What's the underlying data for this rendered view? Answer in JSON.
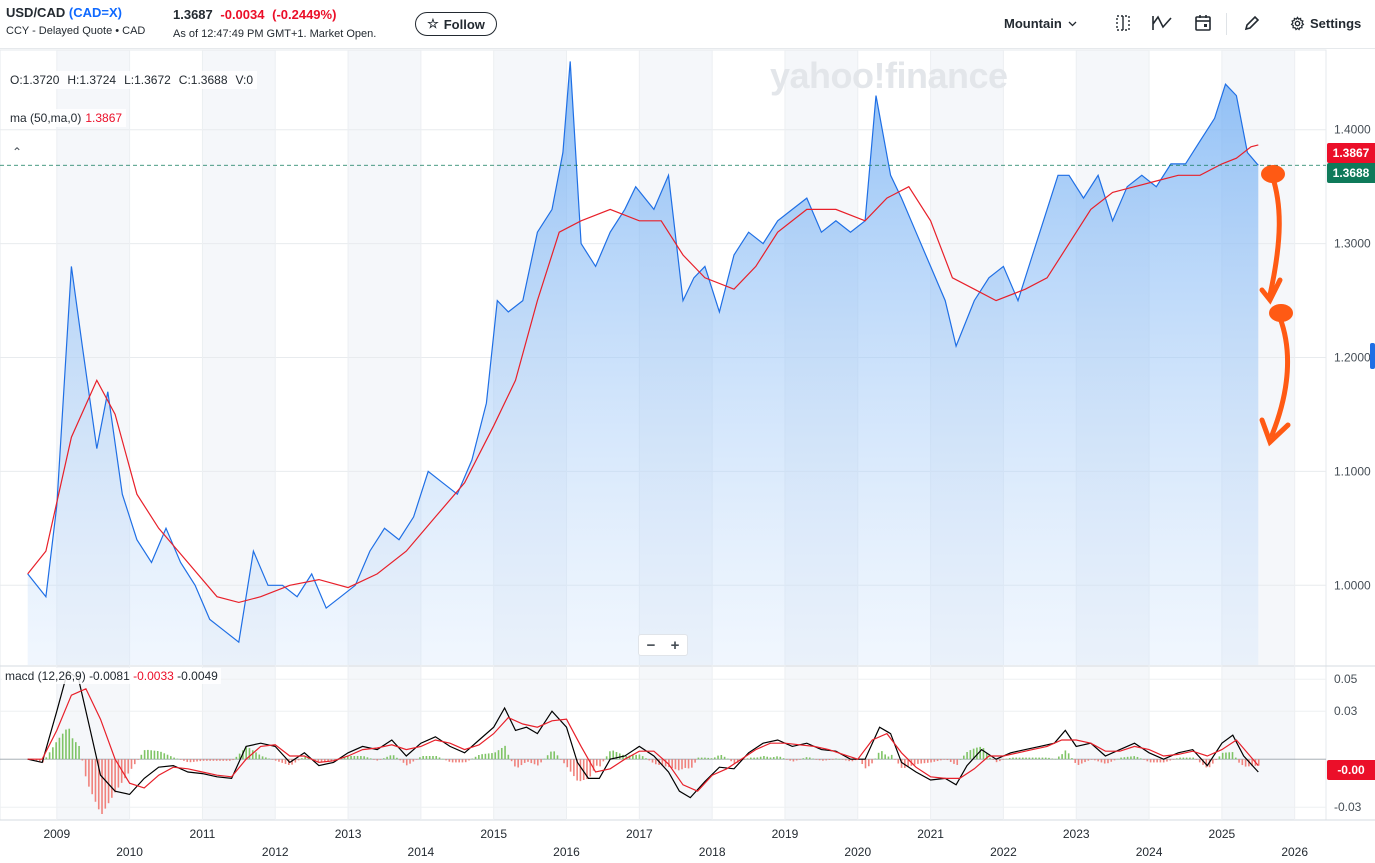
{
  "header": {
    "pair": "USD/CAD",
    "ticker": "(CAD=X)",
    "subtitle": "CCY - Delayed Quote • CAD",
    "price": "1.3687",
    "change": "-0.0034",
    "change_pct": "(-0.2449%)",
    "as_of": "As of 12:47:49 PM GMT+1. Market Open.",
    "follow_label": "Follow",
    "timezone": "Mountain",
    "settings_label": "Settings"
  },
  "legend": {
    "ohlc": [
      "O:1.3720",
      "H:1.3724",
      "L:1.3672",
      "C:1.3688",
      "V:0"
    ],
    "ma_label": "ma (50,ma,0)",
    "ma_value": "1.3867",
    "macd_label": "macd (12,26,9)",
    "macd_v1": "-0.0081",
    "macd_v2": "-0.0033",
    "macd_v3": "-0.0049"
  },
  "watermark": "yahoo!finance",
  "price_tags": {
    "ma": "1.3867",
    "close": "1.3688",
    "macd": "-0.00"
  },
  "colors": {
    "price_line": "#1f6fe5",
    "area": "#a9cdf8",
    "ma_line": "#e8202a",
    "macd_line": "#000000",
    "signal_line": "#e8202a",
    "hist_up": "#7fc466",
    "hist_down": "#f0827c",
    "close_tag": "#0f7a5a",
    "ma_tag": "#eb0f29",
    "annotation": "#ff5a14"
  },
  "chart_data": [
    {
      "type": "area",
      "series": [
        {
          "name": "USD/CAD",
          "x": [
            2008.6,
            2008.85,
            2009.0,
            2009.2,
            2009.35,
            2009.55,
            2009.7,
            2009.9,
            2010.1,
            2010.3,
            2010.5,
            2010.7,
            2010.9,
            2011.1,
            2011.3,
            2011.5,
            2011.7,
            2011.9,
            2012.1,
            2012.3,
            2012.5,
            2012.7,
            2012.9,
            2013.1,
            2013.3,
            2013.5,
            2013.7,
            2013.9,
            2014.1,
            2014.3,
            2014.5,
            2014.7,
            2014.9,
            2015.05,
            2015.2,
            2015.4,
            2015.6,
            2015.8,
            2015.95,
            2016.05,
            2016.2,
            2016.4,
            2016.6,
            2016.8,
            2016.95,
            2017.2,
            2017.4,
            2017.6,
            2017.75,
            2017.9,
            2018.1,
            2018.3,
            2018.5,
            2018.7,
            2018.9,
            2019.1,
            2019.3,
            2019.5,
            2019.7,
            2019.9,
            2020.1,
            2020.25,
            2020.45,
            2020.6,
            2020.8,
            2021.0,
            2021.2,
            2021.35,
            2021.6,
            2021.8,
            2022.0,
            2022.2,
            2022.4,
            2022.6,
            2022.75,
            2022.9,
            2023.1,
            2023.3,
            2023.5,
            2023.7,
            2023.9,
            2024.1,
            2024.3,
            2024.5,
            2024.7,
            2024.9,
            2025.05,
            2025.2,
            2025.35,
            2025.5
          ],
          "y": [
            1.01,
            0.99,
            1.07,
            1.28,
            1.21,
            1.12,
            1.17,
            1.08,
            1.04,
            1.02,
            1.05,
            1.02,
            1.0,
            0.97,
            0.96,
            0.95,
            1.03,
            1.0,
            1.0,
            0.99,
            1.01,
            0.98,
            0.99,
            1.0,
            1.03,
            1.05,
            1.04,
            1.06,
            1.1,
            1.09,
            1.08,
            1.11,
            1.16,
            1.25,
            1.24,
            1.25,
            1.31,
            1.33,
            1.38,
            1.46,
            1.3,
            1.28,
            1.31,
            1.33,
            1.35,
            1.33,
            1.36,
            1.25,
            1.27,
            1.28,
            1.24,
            1.29,
            1.31,
            1.3,
            1.32,
            1.33,
            1.34,
            1.31,
            1.32,
            1.31,
            1.32,
            1.43,
            1.36,
            1.34,
            1.31,
            1.28,
            1.25,
            1.21,
            1.25,
            1.27,
            1.28,
            1.25,
            1.29,
            1.33,
            1.36,
            1.36,
            1.34,
            1.36,
            1.32,
            1.35,
            1.36,
            1.35,
            1.37,
            1.37,
            1.39,
            1.41,
            1.44,
            1.43,
            1.38,
            1.3688
          ]
        },
        {
          "name": "ma (50,ma,0)",
          "x": [
            2008.6,
            2008.85,
            2009.2,
            2009.55,
            2009.8,
            2010.1,
            2010.4,
            2010.8,
            2011.2,
            2011.5,
            2011.8,
            2012.2,
            2012.6,
            2013.0,
            2013.4,
            2013.8,
            2014.2,
            2014.6,
            2015.0,
            2015.3,
            2015.6,
            2015.9,
            2016.2,
            2016.6,
            2017.0,
            2017.3,
            2017.6,
            2017.9,
            2018.3,
            2018.6,
            2018.9,
            2019.3,
            2019.7,
            2020.1,
            2020.4,
            2020.7,
            2021.0,
            2021.3,
            2021.6,
            2021.9,
            2022.3,
            2022.6,
            2022.9,
            2023.2,
            2023.5,
            2023.8,
            2024.1,
            2024.4,
            2024.7,
            2025.0,
            2025.2,
            2025.4,
            2025.5
          ],
          "y": [
            1.01,
            1.03,
            1.13,
            1.18,
            1.15,
            1.08,
            1.05,
            1.02,
            0.99,
            0.985,
            0.99,
            1.0,
            1.005,
            0.998,
            1.01,
            1.03,
            1.06,
            1.09,
            1.14,
            1.18,
            1.25,
            1.31,
            1.32,
            1.33,
            1.32,
            1.32,
            1.29,
            1.27,
            1.26,
            1.28,
            1.31,
            1.33,
            1.33,
            1.32,
            1.34,
            1.35,
            1.32,
            1.27,
            1.26,
            1.25,
            1.26,
            1.27,
            1.3,
            1.33,
            1.345,
            1.35,
            1.355,
            1.36,
            1.36,
            1.37,
            1.375,
            1.385,
            1.3867
          ]
        }
      ],
      "ylim": [
        0.93,
        1.47
      ],
      "ytick_labels": [
        "1.0000",
        "1.1000",
        "1.2000",
        "1.3000",
        "1.4000"
      ],
      "xtick_labels": [
        "2009",
        "2010",
        "2011",
        "2012",
        "2013",
        "2014",
        "2015",
        "2016",
        "2017",
        "2018",
        "2019",
        "2020",
        "2021",
        "2022",
        "2023",
        "2024",
        "2025",
        "2026"
      ],
      "grid": true
    },
    {
      "type": "line",
      "series": [
        {
          "name": "macd (12,26,9)",
          "x": [
            2008.6,
            2008.8,
            2009.0,
            2009.15,
            2009.3,
            2009.45,
            2009.6,
            2009.8,
            2010.0,
            2010.2,
            2010.4,
            2010.6,
            2010.8,
            2011.0,
            2011.2,
            2011.4,
            2011.6,
            2011.8,
            2012.0,
            2012.2,
            2012.4,
            2012.6,
            2012.8,
            2013.0,
            2013.2,
            2013.4,
            2013.6,
            2013.8,
            2014.0,
            2014.2,
            2014.4,
            2014.6,
            2014.8,
            2015.0,
            2015.15,
            2015.3,
            2015.45,
            2015.6,
            2015.8,
            2016.0,
            2016.15,
            2016.3,
            2016.45,
            2016.6,
            2016.8,
            2017.0,
            2017.2,
            2017.4,
            2017.55,
            2017.7,
            2017.9,
            2018.1,
            2018.3,
            2018.5,
            2018.7,
            2018.9,
            2019.1,
            2019.3,
            2019.5,
            2019.7,
            2019.9,
            2020.1,
            2020.3,
            2020.45,
            2020.6,
            2020.8,
            2021.0,
            2021.2,
            2021.35,
            2021.5,
            2021.7,
            2021.9,
            2022.1,
            2022.3,
            2022.5,
            2022.7,
            2022.85,
            2023.0,
            2023.2,
            2023.4,
            2023.6,
            2023.8,
            2024.0,
            2024.2,
            2024.4,
            2024.6,
            2024.8,
            2025.0,
            2025.15,
            2025.3,
            2025.5
          ],
          "y": [
            0.0,
            -0.002,
            0.03,
            0.055,
            0.05,
            0.02,
            -0.01,
            -0.02,
            -0.022,
            -0.012,
            -0.005,
            -0.004,
            -0.008,
            -0.009,
            -0.011,
            -0.012,
            0.008,
            0.01,
            0.008,
            -0.002,
            0.004,
            -0.004,
            -0.002,
            0.004,
            0.008,
            0.006,
            0.012,
            0.002,
            0.01,
            0.014,
            0.008,
            0.004,
            0.012,
            0.02,
            0.032,
            0.018,
            0.02,
            0.016,
            0.03,
            0.02,
            -0.002,
            -0.012,
            -0.012,
            0.0,
            0.002,
            0.008,
            0.002,
            -0.008,
            -0.02,
            -0.024,
            -0.014,
            -0.005,
            -0.006,
            0.004,
            0.01,
            0.012,
            0.008,
            0.01,
            0.006,
            0.005,
            0.0,
            0.0,
            0.02,
            0.016,
            -0.002,
            -0.008,
            -0.013,
            -0.012,
            -0.016,
            -0.004,
            0.006,
            0.0,
            0.004,
            0.006,
            0.008,
            0.01,
            0.018,
            0.008,
            0.01,
            0.002,
            0.006,
            0.01,
            0.004,
            0.0,
            0.004,
            0.006,
            -0.004,
            0.01,
            0.015,
            0.002,
            -0.008
          ]
        },
        {
          "name": "signal",
          "x": [
            2008.6,
            2008.8,
            2009.0,
            2009.2,
            2009.4,
            2009.6,
            2009.8,
            2010.0,
            2010.2,
            2010.4,
            2010.6,
            2010.8,
            2011.0,
            2011.2,
            2011.4,
            2011.6,
            2011.8,
            2012.0,
            2012.2,
            2012.4,
            2012.6,
            2012.8,
            2013.0,
            2013.2,
            2013.4,
            2013.6,
            2013.8,
            2014.0,
            2014.2,
            2014.4,
            2014.6,
            2014.8,
            2015.0,
            2015.2,
            2015.4,
            2015.6,
            2015.8,
            2016.0,
            2016.2,
            2016.4,
            2016.6,
            2016.8,
            2017.0,
            2017.2,
            2017.4,
            2017.6,
            2017.8,
            2018.0,
            2018.2,
            2018.4,
            2018.6,
            2018.8,
            2019.0,
            2019.2,
            2019.4,
            2019.6,
            2019.8,
            2020.0,
            2020.2,
            2020.4,
            2020.6,
            2020.8,
            2021.0,
            2021.2,
            2021.4,
            2021.6,
            2021.8,
            2022.0,
            2022.2,
            2022.4,
            2022.6,
            2022.8,
            2023.0,
            2023.2,
            2023.4,
            2023.6,
            2023.8,
            2024.0,
            2024.2,
            2024.4,
            2024.6,
            2024.8,
            2025.0,
            2025.2,
            2025.5
          ],
          "y": [
            0.0,
            0.0,
            0.018,
            0.04,
            0.044,
            0.025,
            0.0,
            -0.015,
            -0.018,
            -0.01,
            -0.005,
            -0.006,
            -0.008,
            -0.01,
            -0.011,
            0.0,
            0.008,
            0.009,
            0.002,
            0.002,
            -0.002,
            -0.001,
            0.002,
            0.006,
            0.007,
            0.009,
            0.006,
            0.008,
            0.012,
            0.01,
            0.006,
            0.009,
            0.016,
            0.026,
            0.022,
            0.02,
            0.024,
            0.025,
            0.008,
            -0.008,
            -0.006,
            0.0,
            0.005,
            0.005,
            -0.003,
            -0.016,
            -0.02,
            -0.01,
            -0.006,
            0.0,
            0.006,
            0.01,
            0.01,
            0.009,
            0.008,
            0.006,
            0.003,
            0.0,
            0.012,
            0.016,
            0.004,
            -0.005,
            -0.011,
            -0.012,
            -0.012,
            -0.006,
            0.002,
            0.002,
            0.004,
            0.006,
            0.008,
            0.012,
            0.012,
            0.01,
            0.005,
            0.005,
            0.008,
            0.006,
            0.002,
            0.003,
            0.005,
            0.002,
            0.006,
            0.012,
            -0.004
          ]
        }
      ],
      "ylim": [
        -0.038,
        0.057
      ],
      "ytick_labels": [
        "0.05",
        "0.03",
        "-0.03"
      ]
    }
  ]
}
